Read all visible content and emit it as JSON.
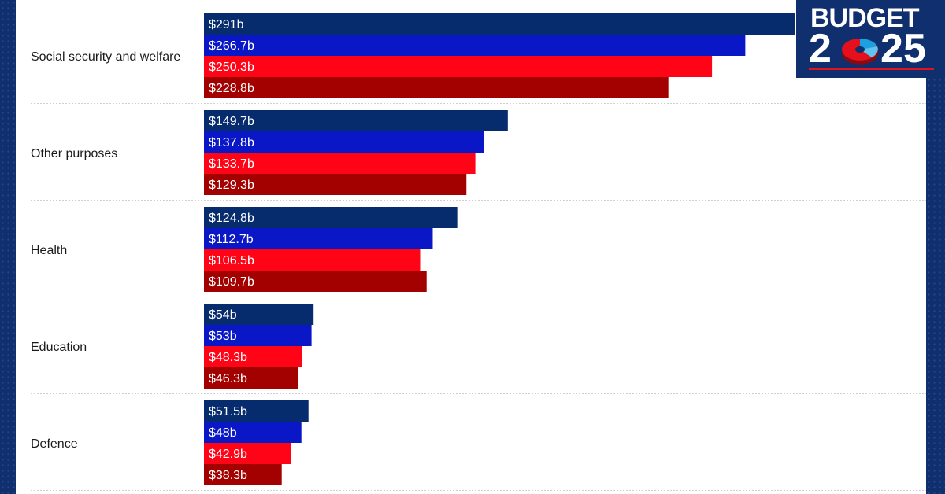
{
  "logo": {
    "word": "BUDGET",
    "year_d1": "2",
    "year_d4": "2",
    "year_d5": "5",
    "pie_icon": "pie-chart-icon"
  },
  "colors": {
    "background": "#0f2f6e",
    "panel": "#ffffff",
    "series": [
      "#062c6e",
      "#0a17c7",
      "#ff0416",
      "#a30000"
    ],
    "accent_red": "#e4111c",
    "accent_blue": "#1ba1e2"
  },
  "chart_data": {
    "type": "bar",
    "orientation": "horizontal",
    "title": "",
    "xlabel": "",
    "ylabel": "",
    "xlim": [
      0,
      291
    ],
    "grid": false,
    "legend": "none",
    "unit_prefix": "$",
    "unit_suffix": "b",
    "categories": [
      "Social security and welfare",
      "Other purposes",
      "Health",
      "Education",
      "Defence"
    ],
    "series": [
      {
        "values": [
          291,
          149.7,
          124.8,
          54,
          51.5
        ],
        "labels": [
          "$291b",
          "$149.7b",
          "$124.8b",
          "$54b",
          "$51.5b"
        ]
      },
      {
        "values": [
          266.7,
          137.8,
          112.7,
          53,
          48
        ],
        "labels": [
          "$266.7b",
          "$137.8b",
          "$112.7b",
          "$53b",
          "$48b"
        ]
      },
      {
        "values": [
          250.3,
          133.7,
          106.5,
          48.3,
          42.9
        ],
        "labels": [
          "$250.3b",
          "$133.7b",
          "$106.5b",
          "$48.3b",
          "$42.9b"
        ]
      },
      {
        "values": [
          228.8,
          129.3,
          109.7,
          46.3,
          38.3
        ],
        "labels": [
          "$228.8b",
          "$129.3b",
          "$109.7b",
          "$46.3b",
          "$38.3b"
        ]
      }
    ]
  }
}
